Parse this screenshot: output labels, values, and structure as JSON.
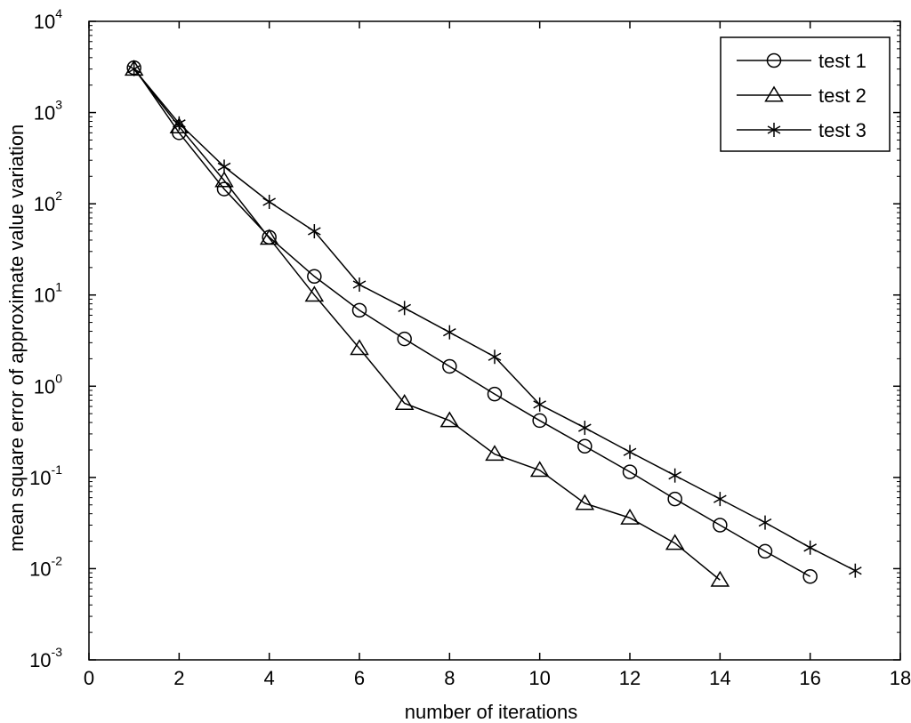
{
  "chart_data": {
    "type": "line",
    "title": "",
    "xlabel": "number of iterations",
    "ylabel": "mean square error of approximate value variation",
    "xlim": [
      0,
      18
    ],
    "ylim": [
      0.001,
      10000
    ],
    "yscale": "log",
    "x_ticks": [
      0,
      2,
      4,
      6,
      8,
      10,
      12,
      14,
      16,
      18
    ],
    "y_ticks": [
      {
        "value": 0.001,
        "base": "10",
        "exp": "-3"
      },
      {
        "value": 0.01,
        "base": "10",
        "exp": "-2"
      },
      {
        "value": 0.1,
        "base": "10",
        "exp": "-1"
      },
      {
        "value": 1,
        "base": "10",
        "exp": "0"
      },
      {
        "value": 10,
        "base": "10",
        "exp": "1"
      },
      {
        "value": 100,
        "base": "10",
        "exp": "2"
      },
      {
        "value": 1000,
        "base": "10",
        "exp": "3"
      },
      {
        "value": 10000,
        "base": "10",
        "exp": "4"
      }
    ],
    "grid": false,
    "legend_position": "top-right",
    "series": [
      {
        "name": "test 1",
        "marker": "circle",
        "x": [
          1,
          2,
          3,
          4,
          5,
          6,
          7,
          8,
          9,
          10,
          11,
          12,
          13,
          14,
          15,
          16
        ],
        "y": [
          3100,
          600,
          145,
          43,
          16,
          6.8,
          3.3,
          1.65,
          0.82,
          0.42,
          0.22,
          0.115,
          0.058,
          0.03,
          0.0155,
          0.0082
        ]
      },
      {
        "name": "test 2",
        "marker": "triangle",
        "x": [
          1,
          2,
          3,
          4,
          5,
          6,
          7,
          8,
          9,
          10,
          11,
          12,
          13,
          14
        ],
        "y": [
          3000,
          700,
          180,
          42,
          10,
          2.6,
          0.65,
          0.42,
          0.18,
          0.12,
          0.052,
          0.036,
          0.019,
          0.0075
        ]
      },
      {
        "name": "test 3",
        "marker": "asterisk",
        "x": [
          1,
          2,
          3,
          4,
          5,
          6,
          7,
          8,
          9,
          10,
          11,
          12,
          13,
          14,
          15,
          16,
          17
        ],
        "y": [
          3000,
          760,
          255,
          105,
          50,
          13,
          7.2,
          3.9,
          2.1,
          0.63,
          0.35,
          0.19,
          0.105,
          0.058,
          0.032,
          0.017,
          0.0095
        ]
      }
    ]
  }
}
